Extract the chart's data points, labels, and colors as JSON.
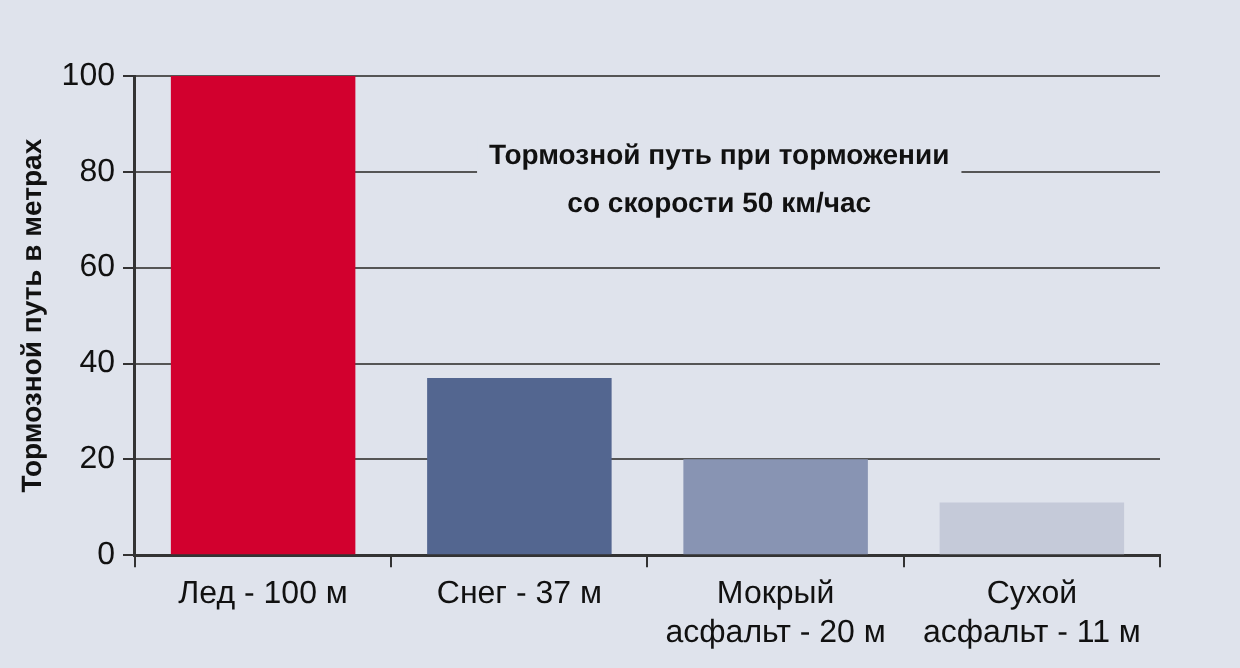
{
  "chart_data": {
    "type": "bar",
    "title": "Тормозной путь при торможении\nсо скорости 50 км/час",
    "ylabel": "Тормозной путь в метрах",
    "categories": [
      "Лед - 100 м",
      "Снег - 37 м",
      "Мокрый\nасфальт - 20 м",
      "Сухой\nасфальт - 11 м"
    ],
    "values": [
      100,
      37,
      20,
      11
    ],
    "colors": [
      "#d2002e",
      "#536690",
      "#8894b3",
      "#c5cad9"
    ],
    "ylim": [
      0,
      100
    ],
    "yticks": [
      0,
      20,
      40,
      60,
      80,
      100
    ],
    "grid": "y",
    "legend": false
  }
}
